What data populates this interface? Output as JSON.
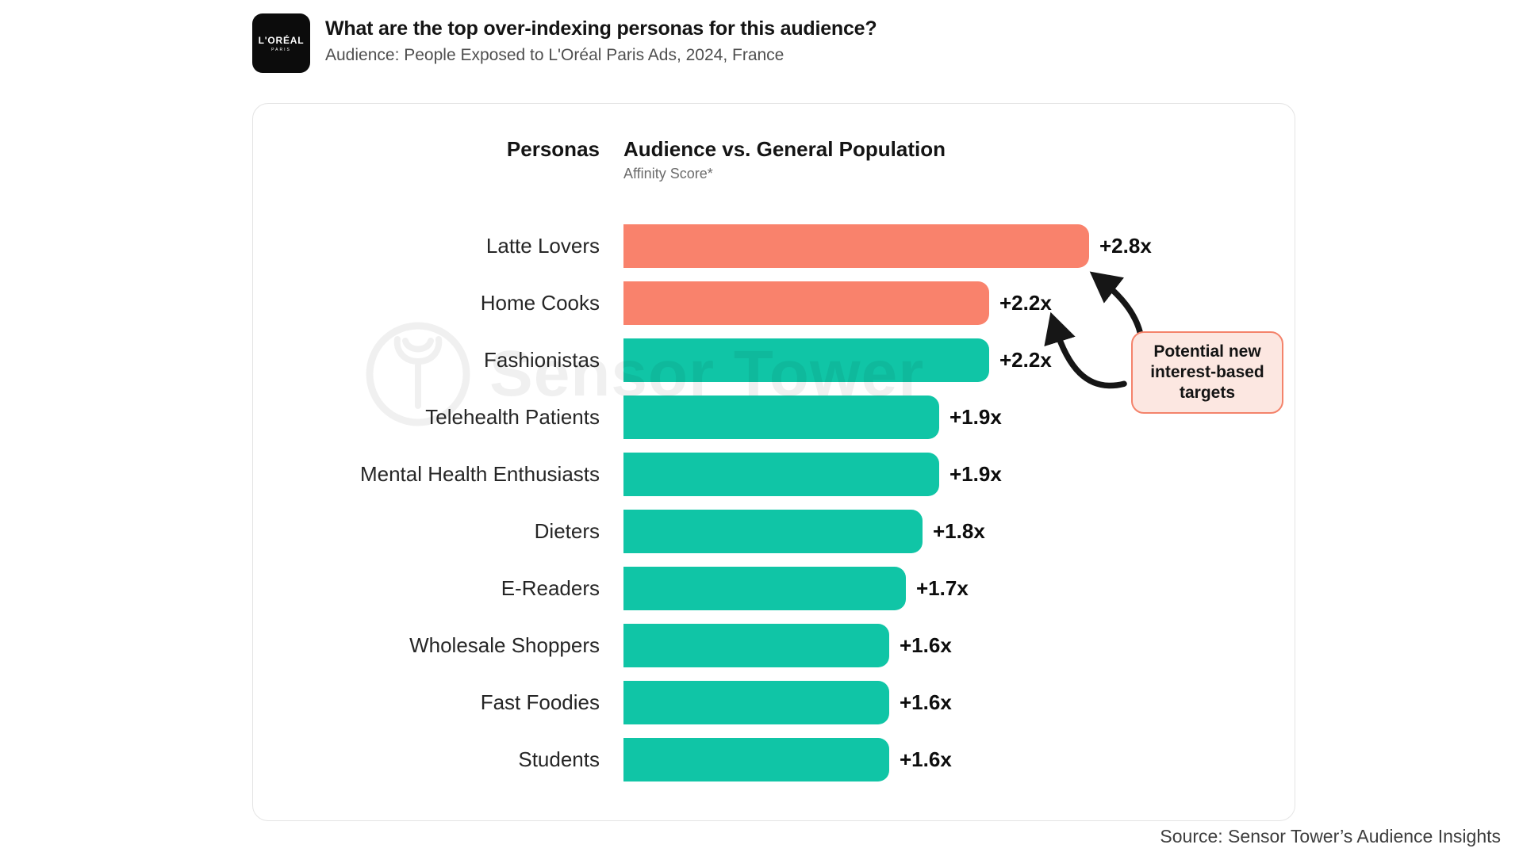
{
  "header": {
    "logo_line1": "L'ORÉAL",
    "logo_line2": "PARIS",
    "title": "What are the top over-indexing personas for this audience?",
    "subtitle": "Audience: People Exposed to L'Oréal Paris Ads, 2024, France"
  },
  "chart_data": {
    "type": "bar",
    "orientation": "horizontal",
    "categories_header": "Personas",
    "title": "Audience vs. General Population",
    "subtitle": "Affinity Score*",
    "categories": [
      "Latte Lovers",
      "Home Cooks",
      "Fashionistas",
      "Telehealth Patients",
      "Mental Health Enthusiasts",
      "Dieters",
      "E-Readers",
      "Wholesale Shoppers",
      "Fast Foodies",
      "Students"
    ],
    "values": [
      2.8,
      2.2,
      2.2,
      1.9,
      1.9,
      1.8,
      1.7,
      1.6,
      1.6,
      1.6
    ],
    "value_labels": [
      "+2.8x",
      "+2.2x",
      "+2.2x",
      "+1.9x",
      "+1.9x",
      "+1.8x",
      "+1.7x",
      "+1.6x",
      "+1.6x",
      "+1.6x"
    ],
    "xlim": [
      0,
      2.8
    ],
    "grid": false,
    "legend": false,
    "bar_color": "#10c5a6",
    "highlight_color": "#f9826c",
    "highlighted_indices": [
      0,
      1
    ],
    "annotation": "Potential new interest-based targets"
  },
  "annotation": {
    "line1": "Potential new",
    "line2": "interest-based",
    "line3": "targets"
  },
  "watermark": {
    "text": "Sensor Tower"
  },
  "footer": {
    "source": "Source: Sensor Tower’s Audience Insights"
  }
}
